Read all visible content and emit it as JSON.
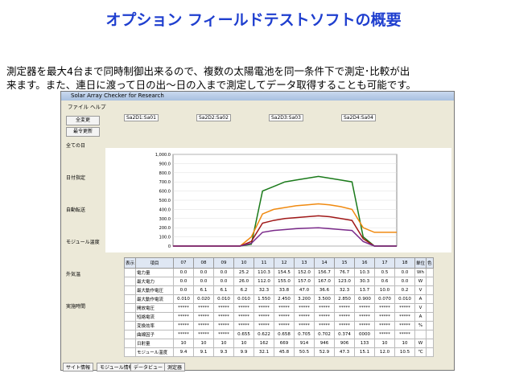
{
  "title": "オプション フィールドテストソフトの概要",
  "description": [
    "測定器を最大4台まで同時制御出来るので、複数の太陽電池を同一条件下で測定･比較が出",
    "来ます。また、連日に渡って日の出～日の入まで測定してデータ取得することも可能です。"
  ],
  "window": {
    "title": "Solar Array Checker for Research",
    "menu": [
      "ファイル",
      "ヘルプ"
    ],
    "buttons": [
      "全変更",
      "最令更新"
    ],
    "left_options": [
      "全ての日",
      "日付指定",
      "自動転送",
      "モジュール温度",
      "外気温",
      "実施時間"
    ],
    "devices": [
      "Sa2D1:Sa01",
      "Sa2D2:Sa02",
      "Sa2D3:Sa03",
      "Sa2D4:Sa04"
    ],
    "tabs": [
      "サイト情報",
      "モジュール情報",
      "データビュー",
      "測定器"
    ]
  },
  "chart_data": {
    "type": "line",
    "ylim": [
      0,
      1000
    ],
    "yticks": [
      0,
      {
        "value": 100,
        "label": "100.0"
      },
      {
        "value": 200,
        "label": "200.0"
      },
      {
        "value": 300,
        "label": "300.0"
      },
      {
        "value": 400,
        "label": "400.0"
      },
      {
        "value": 500,
        "label": "500.0"
      },
      {
        "value": 600,
        "label": "600.0"
      },
      {
        "value": 700,
        "label": "700.0"
      },
      {
        "value": 800,
        "label": "800.0"
      },
      {
        "value": 900,
        "label": "900.0"
      },
      {
        "value": 1000,
        "label": "1,000.0"
      }
    ],
    "series": [
      {
        "color": "#1a7a1a",
        "values": [
          0,
          0,
          0,
          0,
          0,
          0,
          0,
          20,
          600,
          650,
          700,
          720,
          740,
          760,
          740,
          720,
          700,
          100,
          0,
          0,
          0
        ]
      },
      {
        "color": "#f08a10",
        "values": [
          0,
          0,
          0,
          0,
          0,
          0,
          0,
          100,
          350,
          400,
          420,
          440,
          450,
          460,
          450,
          430,
          400,
          200,
          150,
          150,
          150
        ]
      },
      {
        "color": "#a01818",
        "values": [
          0,
          0,
          0,
          0,
          0,
          0,
          0,
          50,
          250,
          280,
          300,
          310,
          320,
          330,
          320,
          300,
          280,
          80,
          0,
          0,
          0
        ]
      },
      {
        "color": "#7a2a8a",
        "values": [
          0,
          0,
          0,
          0,
          0,
          0,
          0,
          30,
          150,
          170,
          180,
          190,
          195,
          200,
          190,
          180,
          170,
          50,
          0,
          0,
          0
        ]
      }
    ]
  },
  "table": {
    "header": [
      "表示",
      "項目",
      "07",
      "08",
      "09",
      "10",
      "11",
      "12",
      "13",
      "14",
      "15",
      "16",
      "17",
      "18",
      "単位",
      "色"
    ],
    "rows": [
      [
        "",
        "電力量",
        "0.0",
        "0.0",
        "0.0",
        "25.2",
        "110.3",
        "154.5",
        "152.0",
        "156.7",
        "76.7",
        "10.3",
        "0.5",
        "0.0",
        "Wh",
        ""
      ],
      [
        "",
        "最大電力",
        "0.0",
        "0.0",
        "0.0",
        "26.0",
        "112.0",
        "155.0",
        "157.0",
        "167.0",
        "123.0",
        "30.3",
        "0.6",
        "0.0",
        "W",
        ""
      ],
      [
        "",
        "最大動作電圧",
        "0.0",
        "6.1",
        "6.1",
        "6.2",
        "32.3",
        "33.8",
        "47.0",
        "36.6",
        "32.3",
        "13.7",
        "10.0",
        "0.2",
        "V",
        ""
      ],
      [
        "",
        "最大動作電流",
        "0.010",
        "0.020",
        "0.010",
        "0.010",
        "1.550",
        "2.450",
        "3.200",
        "3.500",
        "2.850",
        "0.900",
        "0.070",
        "0.010",
        "A",
        ""
      ],
      [
        "",
        "開放電圧",
        "*****",
        "*****",
        "*****",
        "*****",
        "*****",
        "*****",
        "*****",
        "*****",
        "*****",
        "*****",
        "*****",
        "*****",
        "V",
        ""
      ],
      [
        "",
        "短絡電流",
        "*****",
        "*****",
        "*****",
        "*****",
        "*****",
        "*****",
        "*****",
        "*****",
        "*****",
        "*****",
        "*****",
        "*****",
        "A",
        ""
      ],
      [
        "",
        "変換効率",
        "*****",
        "*****",
        "*****",
        "*****",
        "*****",
        "*****",
        "*****",
        "*****",
        "*****",
        "*****",
        "*****",
        "*****",
        "%",
        ""
      ],
      [
        "",
        "曲線因子",
        "*****",
        "*****",
        "*****",
        "0.655",
        "0.622",
        "0.658",
        "0.705",
        "0.702",
        "0.374",
        "0000",
        "*****",
        "*****",
        "",
        ""
      ],
      [
        "",
        "日射量",
        "10",
        "10",
        "10",
        "10",
        "162",
        "669",
        "914",
        "946",
        "906",
        "133",
        "10",
        "10",
        "W",
        ""
      ],
      [
        "",
        "モジュール温度",
        "9.4",
        "9.1",
        "9.3",
        "9.9",
        "32.1",
        "45.8",
        "50.5",
        "52.9",
        "47.3",
        "15.1",
        "12.0",
        "10.5",
        "℃",
        ""
      ]
    ]
  }
}
